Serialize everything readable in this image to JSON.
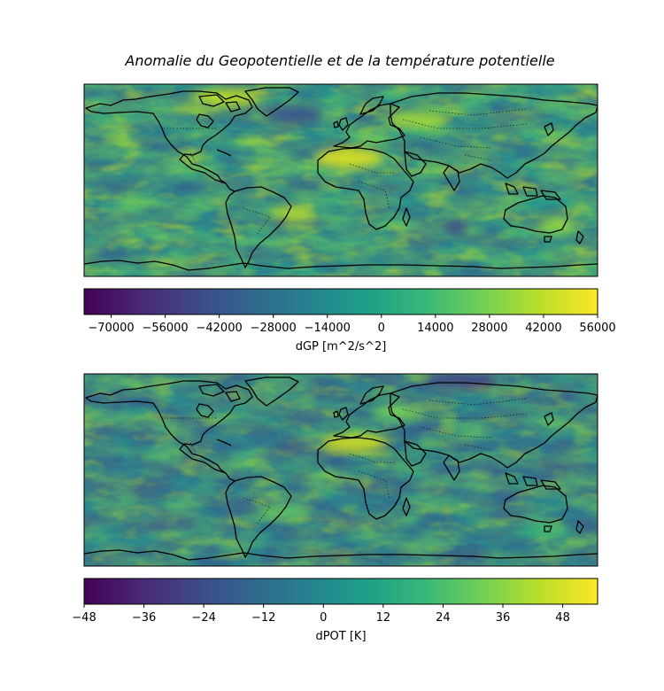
{
  "chart_data": [
    {
      "type": "heatmap",
      "title": "Anomalie du Geopotentielle et de la température potentielle",
      "projection": "PlateCarree world map with coastlines and dotted country borders",
      "colormap": "viridis",
      "colorbar": {
        "label": "dGP [m^2/s^2]",
        "range": [
          -77000,
          56000
        ],
        "ticks": [
          -70000,
          -56000,
          -42000,
          -28000,
          -14000,
          0,
          14000,
          28000,
          42000,
          56000
        ],
        "tick_labels": [
          "−70000",
          "−56000",
          "−42000",
          "−28000",
          "−14000",
          "0",
          "14000",
          "28000",
          "42000",
          "56000"
        ]
      }
    },
    {
      "type": "heatmap",
      "projection": "PlateCarree world map with coastlines and dotted country borders",
      "colormap": "viridis",
      "colorbar": {
        "label": "dPOT [K]",
        "range": [
          -48,
          55
        ],
        "ticks": [
          -48,
          -36,
          -24,
          -12,
          0,
          12,
          24,
          36,
          48
        ],
        "tick_labels": [
          "−48",
          "−36",
          "−24",
          "−12",
          "0",
          "12",
          "24",
          "36",
          "48"
        ]
      }
    }
  ],
  "colors": {
    "viridis": [
      "#440154",
      "#482878",
      "#3e4989",
      "#31688e",
      "#26828e",
      "#1f9e89",
      "#35b779",
      "#6ece58",
      "#b5de2b",
      "#fde725"
    ],
    "coastline": "#000000"
  }
}
